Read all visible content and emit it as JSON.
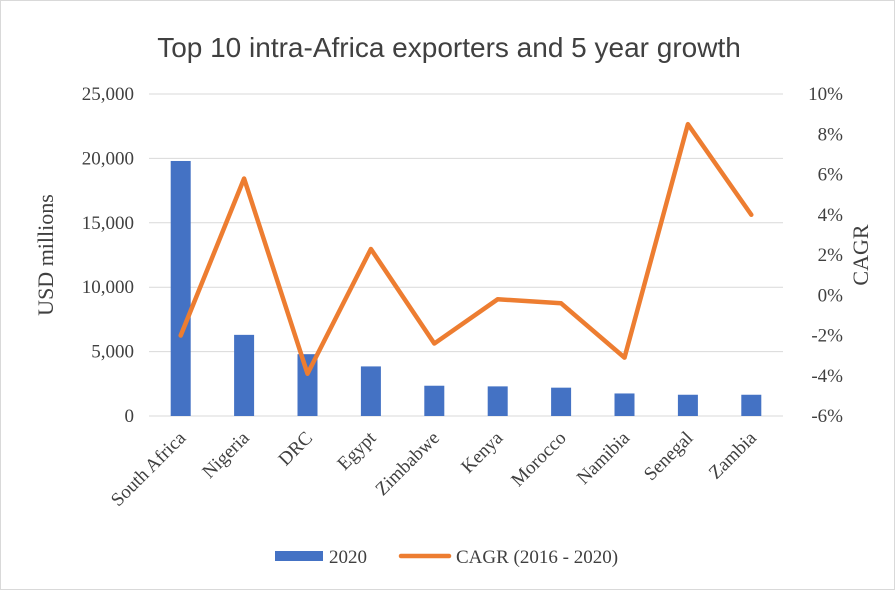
{
  "chart_data": {
    "type": "bar",
    "title": "Top 10 intra-Africa exporters and 5 year growth",
    "categories": [
      "South Africa",
      "Nigeria",
      "DRC",
      "Egypt",
      "Zimbabwe",
      "Kenya",
      "Morocco",
      "Namibia",
      "Senegal",
      "Zambia"
    ],
    "series": [
      {
        "name": "2020",
        "type": "bar",
        "axis": "left",
        "color": "#4472c4",
        "values": [
          19800,
          6300,
          4800,
          3850,
          2350,
          2300,
          2200,
          1750,
          1650,
          1650
        ]
      },
      {
        "name": "CAGR (2016 - 2020)",
        "type": "line",
        "axis": "right",
        "color": "#ed7d31",
        "values": [
          -2.0,
          5.8,
          -3.9,
          2.3,
          -2.4,
          -0.2,
          -0.4,
          -3.1,
          8.5,
          4.0
        ]
      }
    ],
    "ylabel": "USD millions",
    "ylim": [
      0,
      25000
    ],
    "yticks": [
      "0",
      "5,000",
      "10,000",
      "15,000",
      "20,000",
      "25,000"
    ],
    "y2label": "CAGR",
    "y2lim": [
      -6,
      10
    ],
    "y2ticks": [
      "-6%",
      "-4%",
      "-2%",
      "0%",
      "2%",
      "4%",
      "6%",
      "8%",
      "10%"
    ],
    "grid": true,
    "legend": "bottom"
  }
}
